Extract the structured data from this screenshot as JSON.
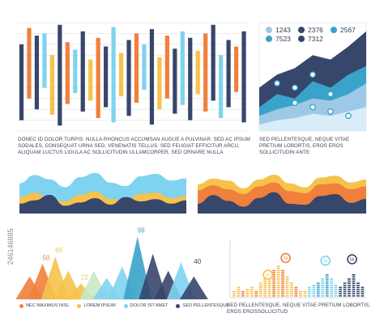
{
  "side_label": "246146885",
  "colors": {
    "navy": "#37466b",
    "orange": "#f0803c",
    "yellow": "#f6c24b",
    "lightblue": "#7fd3f0",
    "sky": "#9ec9e6",
    "teal": "#3aa3c9",
    "grey": "#c9ced6",
    "dark": "#2f3e55"
  },
  "chart_data": [
    {
      "id": "vertical-bars",
      "type": "bar",
      "grid": true,
      "ylim": [
        0,
        100
      ],
      "bars": [
        {
          "c": "#37466b",
          "lo": 10,
          "hi": 80
        },
        {
          "c": "#f0803c",
          "lo": 30,
          "hi": 95
        },
        {
          "c": "#37466b",
          "lo": 20,
          "hi": 88
        },
        {
          "c": "#7fd3f0",
          "lo": 40,
          "hi": 90
        },
        {
          "c": "#f6c24b",
          "lo": 15,
          "hi": 70
        },
        {
          "c": "#37466b",
          "lo": 5,
          "hi": 98
        },
        {
          "c": "#f0803c",
          "lo": 25,
          "hi": 82
        },
        {
          "c": "#7fd3f0",
          "lo": 35,
          "hi": 75
        },
        {
          "c": "#37466b",
          "lo": 18,
          "hi": 92
        },
        {
          "c": "#f6c24b",
          "lo": 28,
          "hi": 66
        },
        {
          "c": "#f0803c",
          "lo": 12,
          "hi": 86
        },
        {
          "c": "#37466b",
          "lo": 22,
          "hi": 78
        },
        {
          "c": "#7fd3f0",
          "lo": 8,
          "hi": 96
        },
        {
          "c": "#f6c24b",
          "lo": 32,
          "hi": 72
        },
        {
          "c": "#37466b",
          "lo": 14,
          "hi": 84
        },
        {
          "c": "#f0803c",
          "lo": 26,
          "hi": 90
        },
        {
          "c": "#7fd3f0",
          "lo": 38,
          "hi": 80
        },
        {
          "c": "#37466b",
          "lo": 6,
          "hi": 94
        },
        {
          "c": "#f6c24b",
          "lo": 20,
          "hi": 68
        },
        {
          "c": "#f0803c",
          "lo": 30,
          "hi": 88
        },
        {
          "c": "#37466b",
          "lo": 16,
          "hi": 76
        },
        {
          "c": "#7fd3f0",
          "lo": 24,
          "hi": 92
        },
        {
          "c": "#37466b",
          "lo": 10,
          "hi": 86
        },
        {
          "c": "#f6c24b",
          "lo": 34,
          "hi": 74
        },
        {
          "c": "#f0803c",
          "lo": 18,
          "hi": 90
        },
        {
          "c": "#37466b",
          "lo": 28,
          "hi": 98
        },
        {
          "c": "#7fd3f0",
          "lo": 12,
          "hi": 70
        },
        {
          "c": "#37466b",
          "lo": 22,
          "hi": 84
        },
        {
          "c": "#f0803c",
          "lo": 36,
          "hi": 78
        },
        {
          "c": "#37466b",
          "lo": 8,
          "hi": 92
        }
      ]
    },
    {
      "id": "area-stats",
      "type": "area",
      "stats": [
        {
          "value": "1243",
          "color": "#9ec9e6"
        },
        {
          "value": "2376",
          "color": "#37466b"
        },
        {
          "value": "2567",
          "color": "#3aa3c9"
        },
        {
          "value": "7523",
          "color": "#3aa3c9"
        },
        {
          "value": "7312",
          "color": "#37466b"
        }
      ],
      "series": [
        {
          "color": "#37466b",
          "values": [
            40,
            52,
            58,
            70,
            66,
            78,
            92
          ]
        },
        {
          "color": "#3aa3c9",
          "values": [
            22,
            34,
            30,
            46,
            40,
            52,
            60
          ]
        },
        {
          "color": "#9ec9e6",
          "values": [
            14,
            20,
            24,
            30,
            28,
            34,
            44
          ]
        },
        {
          "color": "#d8edf8",
          "values": [
            6,
            10,
            12,
            16,
            14,
            18,
            22
          ]
        }
      ],
      "markers": [
        {
          "x": 1,
          "y": 44
        },
        {
          "x": 2,
          "y": 40
        },
        {
          "x": 3,
          "y": 52
        },
        {
          "x": 4,
          "y": 34
        },
        {
          "x": 2,
          "y": 26
        },
        {
          "x": 3,
          "y": 22
        },
        {
          "x": 4,
          "y": 18
        },
        {
          "x": 5,
          "y": 14
        }
      ]
    },
    {
      "id": "wave-1",
      "type": "area",
      "series": [
        {
          "color": "#7fd3f0",
          "values": [
            55,
            70,
            62,
            48,
            66,
            74,
            56,
            50,
            68,
            72,
            60,
            64
          ]
        },
        {
          "color": "#f6c24b",
          "values": [
            30,
            38,
            28,
            22,
            34,
            40,
            26,
            24,
            36,
            38,
            28,
            32
          ]
        },
        {
          "color": "#37466b",
          "values": [
            18,
            24,
            34,
            14,
            20,
            28,
            16,
            30,
            22,
            26,
            18,
            24
          ]
        }
      ]
    },
    {
      "id": "wave-2",
      "type": "area",
      "series": [
        {
          "color": "#f6c24b",
          "values": [
            60,
            72,
            68,
            52,
            70,
            80,
            62,
            54,
            74,
            78,
            64,
            70
          ]
        },
        {
          "color": "#f0803c",
          "values": [
            48,
            58,
            50,
            40,
            56,
            64,
            46,
            42,
            60,
            62,
            50,
            56
          ]
        },
        {
          "color": "#37466b",
          "values": [
            20,
            38,
            26,
            14,
            32,
            44,
            20,
            18,
            36,
            40,
            22,
            30
          ]
        }
      ]
    },
    {
      "id": "peaks",
      "type": "area",
      "labels": [
        "50",
        "65",
        "22",
        "99",
        "40"
      ],
      "legend": [
        "NEC MAXIMUS NISL",
        "LOREM IPSUM",
        "DOLOR SIT AMET",
        "SED PELLENTESQUE"
      ],
      "legend_colors": [
        "#f0803c",
        "#f6c24b",
        "#7fd3f0",
        "#37466b"
      ],
      "peaks": [
        {
          "x": 4,
          "h": 32,
          "c": "#f0803c"
        },
        {
          "x": 9,
          "h": 50,
          "c": "#f0803c"
        },
        {
          "x": 14,
          "h": 60,
          "c": "#f6c24b"
        },
        {
          "x": 19,
          "h": 40,
          "c": "#f6c24b"
        },
        {
          "x": 24,
          "h": 22,
          "c": "#f6c24b"
        },
        {
          "x": 29,
          "h": 40,
          "c": "#c9e9c4"
        },
        {
          "x": 34,
          "h": 30,
          "c": "#7fd3f0"
        },
        {
          "x": 40,
          "h": 46,
          "c": "#7fd3f0"
        },
        {
          "x": 46,
          "h": 88,
          "c": "#3aa3c9"
        },
        {
          "x": 52,
          "h": 64,
          "c": "#37466b"
        },
        {
          "x": 58,
          "h": 40,
          "c": "#37466b"
        },
        {
          "x": 63,
          "h": 52,
          "c": "#7fd3f0"
        },
        {
          "x": 68,
          "h": 32,
          "c": "#37466b"
        }
      ]
    },
    {
      "id": "dot-bars",
      "type": "bar",
      "labels": [
        "66",
        "16",
        "56",
        "56"
      ],
      "columns": [
        {
          "h": 10,
          "c": "#f6c24b"
        },
        {
          "h": 14,
          "c": "#f6c24b"
        },
        {
          "h": 8,
          "c": "#f0803c"
        },
        {
          "h": 12,
          "c": "#f6c24b"
        },
        {
          "h": 16,
          "c": "#f6c24b"
        },
        {
          "h": 10,
          "c": "#f0803c"
        },
        {
          "h": 20,
          "c": "#f6c24b"
        },
        {
          "h": 26,
          "c": "#f6c24b"
        },
        {
          "h": 32,
          "c": "#f6c24b"
        },
        {
          "h": 38,
          "c": "#f0803c"
        },
        {
          "h": 44,
          "c": "#f6c24b"
        },
        {
          "h": 38,
          "c": "#f0803c"
        },
        {
          "h": 30,
          "c": "#f6c24b"
        },
        {
          "h": 22,
          "c": "#f6c24b"
        },
        {
          "h": 14,
          "c": "#f0803c"
        },
        {
          "h": 10,
          "c": "#f6c24b"
        },
        {
          "h": 8,
          "c": "#f6c24b"
        },
        {
          "h": 14,
          "c": "#7fd3f0"
        },
        {
          "h": 18,
          "c": "#7fd3f0"
        },
        {
          "h": 22,
          "c": "#3aa3c9"
        },
        {
          "h": 26,
          "c": "#7fd3f0"
        },
        {
          "h": 32,
          "c": "#3aa3c9"
        },
        {
          "h": 26,
          "c": "#7fd3f0"
        },
        {
          "h": 18,
          "c": "#7fd3f0"
        },
        {
          "h": 14,
          "c": "#37466b"
        },
        {
          "h": 20,
          "c": "#37466b"
        },
        {
          "h": 28,
          "c": "#37466b"
        },
        {
          "h": 34,
          "c": "#37466b"
        },
        {
          "h": 22,
          "c": "#37466b"
        },
        {
          "h": 16,
          "c": "#37466b"
        }
      ]
    }
  ],
  "captions": {
    "top_left": "DONEC ID DOLOR TURPIS. NULLA RHONCUS ACCUMSAN AUGUE A PULVINAR. SED AC IPSUM SODALES, CONSEQUAT URNA SED, VENENATIS TELLUS. SED FEUGIAT EFFICITUR ARCU, ALIQUAM LUCTUS LIGULA AC SOLLICITUDIN ULLAMCORPER. SED ORNARE NULLA",
    "top_right": "SED PELLENTESQUE, NEQUE VITAE PRETIUM LOBORTIS, EROS EROS SOLLICITUDIN ANTE",
    "bottom_right": "SED PELLENTESQUE, NEQUE VITAE PRETIUM LOBORTIS, EROS EROSSOLLICITUD"
  }
}
